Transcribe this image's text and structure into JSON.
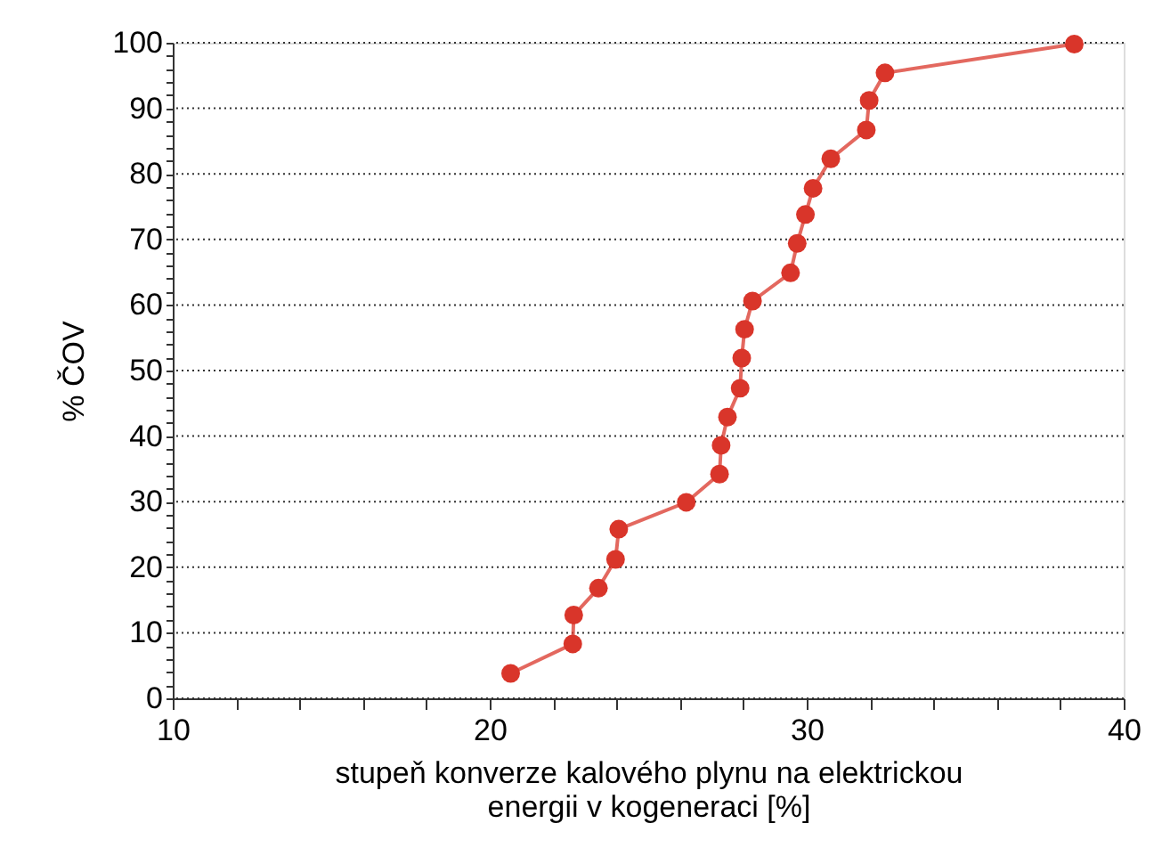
{
  "chart_data": {
    "type": "line",
    "xlabel": "stupeň konverze kalového plynu na elektrickou\nenergii v kogeneraci [%]",
    "ylabel": "% ČOV",
    "x": [
      20.66,
      22.62,
      22.65,
      23.43,
      23.97,
      24.07,
      26.2,
      27.25,
      27.3,
      27.5,
      27.9,
      27.95,
      28.04,
      28.29,
      29.49,
      29.7,
      29.96,
      30.2,
      30.76,
      31.88,
      31.97,
      32.47,
      38.44
    ],
    "series": [
      {
        "color": "#d9352a",
        "values": [
          3.8,
          8.3,
          12.7,
          16.8,
          21.2,
          25.8,
          29.9,
          34.2,
          38.6,
          42.9,
          47.3,
          51.9,
          56.3,
          60.6,
          64.9,
          69.4,
          73.8,
          77.8,
          82.3,
          86.7,
          91.2,
          95.4,
          99.8
        ]
      }
    ],
    "marker": "circle",
    "line_style": "solid",
    "xlim": [
      10,
      40
    ],
    "xticks": [
      10,
      {
        "value": 12,
        "label": null
      },
      {
        "value": 14,
        "label": null
      },
      {
        "value": 16,
        "label": null
      },
      {
        "value": 18,
        "label": null
      },
      20,
      {
        "value": 22,
        "label": null
      },
      {
        "value": 24,
        "label": null
      },
      {
        "value": 26,
        "label": null
      },
      {
        "value": 28,
        "label": null
      },
      30,
      {
        "value": 32,
        "label": null
      },
      {
        "value": 34,
        "label": null
      },
      {
        "value": 36,
        "label": null
      },
      {
        "value": 38,
        "label": null
      },
      40
    ],
    "ylim": [
      0,
      100
    ],
    "yticks": [
      0,
      {
        "value": 2,
        "label": null
      },
      {
        "value": 4,
        "label": null
      },
      {
        "value": 6,
        "label": null
      },
      {
        "value": 8,
        "label": null
      },
      10,
      {
        "value": 12,
        "label": null
      },
      {
        "value": 14,
        "label": null
      },
      {
        "value": 16,
        "label": null
      },
      {
        "value": 18,
        "label": null
      },
      20,
      {
        "value": 22,
        "label": null
      },
      {
        "value": 24,
        "label": null
      },
      {
        "value": 26,
        "label": null
      },
      {
        "value": 28,
        "label": null
      },
      30,
      {
        "value": 32,
        "label": null
      },
      {
        "value": 34,
        "label": null
      },
      {
        "value": 36,
        "label": null
      },
      {
        "value": 38,
        "label": null
      },
      40,
      {
        "value": 42,
        "label": null
      },
      {
        "value": 44,
        "label": null
      },
      {
        "value": 46,
        "label": null
      },
      {
        "value": 48,
        "label": null
      },
      50,
      {
        "value": 52,
        "label": null
      },
      {
        "value": 54,
        "label": null
      },
      {
        "value": 56,
        "label": null
      },
      {
        "value": 58,
        "label": null
      },
      60,
      {
        "value": 62,
        "label": null
      },
      {
        "value": 64,
        "label": null
      },
      {
        "value": 66,
        "label": null
      },
      {
        "value": 68,
        "label": null
      },
      70,
      {
        "value": 72,
        "label": null
      },
      {
        "value": 74,
        "label": null
      },
      {
        "value": 76,
        "label": null
      },
      {
        "value": 78,
        "label": null
      },
      80,
      {
        "value": 82,
        "label": null
      },
      {
        "value": 84,
        "label": null
      },
      {
        "value": 86,
        "label": null
      },
      {
        "value": 88,
        "label": null
      },
      90,
      {
        "value": 92,
        "label": null
      },
      {
        "value": 94,
        "label": null
      },
      {
        "value": 96,
        "label": null
      },
      {
        "value": 98,
        "label": null
      },
      100
    ],
    "grid": "y"
  }
}
